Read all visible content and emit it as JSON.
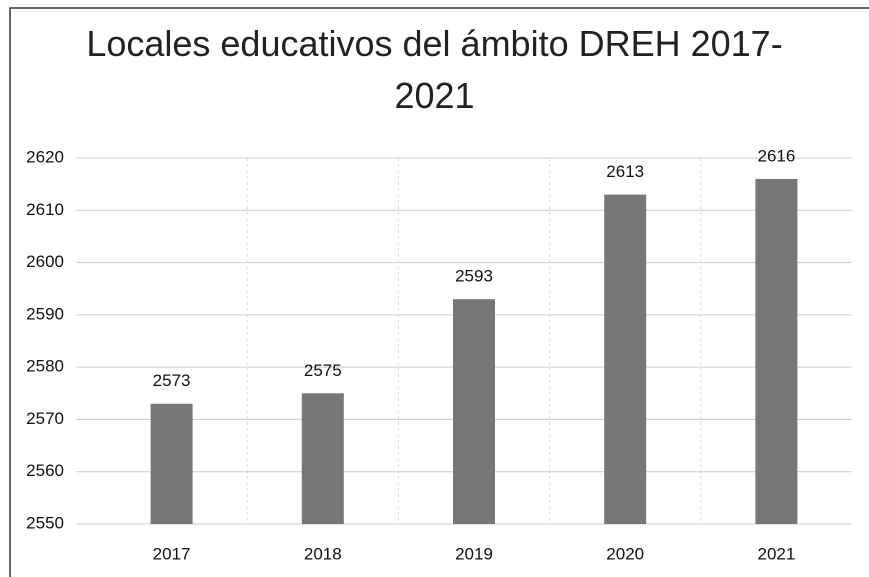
{
  "chart_data": {
    "type": "bar",
    "title": "Locales educativos del ámbito DREH 2017-\n2021",
    "categories": [
      "2017",
      "2018",
      "2019",
      "2020",
      "2021"
    ],
    "values": [
      2573,
      2575,
      2593,
      2613,
      2616
    ],
    "color": "#777777",
    "ylim": [
      2550,
      2620
    ],
    "yticks": [
      2550,
      2560,
      2570,
      2580,
      2590,
      2600,
      2610,
      2620
    ],
    "grid": true
  }
}
